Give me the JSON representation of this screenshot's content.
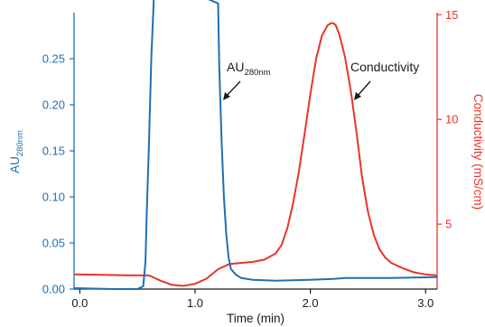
{
  "chart_data": {
    "type": "line",
    "xlabel": "Time (min)",
    "ylabel_left": "AU",
    "ylabel_left_sub": "280nm",
    "ylabel_right": "Conductivity (mS/cm)",
    "xlim": [
      -0.05,
      3.1
    ],
    "ylim_left": [
      0,
      0.3
    ],
    "ylim_right": [
      1.9,
      15.1
    ],
    "x_ticks": [
      "0.0",
      "1.0",
      "2.0",
      "3.0"
    ],
    "y_left_ticks": [
      "0.00",
      "0.05",
      "0.10",
      "0.15",
      "0.20",
      "0.25"
    ],
    "y_right_ticks": [
      "5",
      "10",
      "15"
    ],
    "colors": {
      "uv": "#1f6fb2",
      "conductivity": "#e8342b",
      "text": "#1a1a1a"
    },
    "series": [
      {
        "name": "AU280nm",
        "axis": "left",
        "x": [
          -0.05,
          0.3,
          0.5,
          0.55,
          0.57,
          0.58,
          0.6,
          0.62,
          0.64,
          0.65,
          1.2,
          1.21,
          1.23,
          1.25,
          1.27,
          1.29,
          1.31,
          1.35,
          1.4,
          1.5,
          1.7,
          2.0,
          2.2,
          2.3,
          2.5,
          2.7,
          3.1
        ],
        "y": [
          0.001,
          0.0,
          0.0,
          0.003,
          0.03,
          0.08,
          0.16,
          0.25,
          0.31,
          0.34,
          0.31,
          0.24,
          0.16,
          0.1,
          0.06,
          0.035,
          0.022,
          0.016,
          0.012,
          0.01,
          0.009,
          0.01,
          0.011,
          0.012,
          0.012,
          0.012,
          0.013
        ]
      },
      {
        "name": "Conductivity",
        "axis": "right",
        "x": [
          -0.05,
          0.4,
          0.6,
          0.7,
          0.8,
          0.9,
          1.0,
          1.1,
          1.2,
          1.3,
          1.5,
          1.6,
          1.7,
          1.75,
          1.8,
          1.85,
          1.9,
          1.95,
          2.0,
          2.05,
          2.1,
          2.15,
          2.18,
          2.2,
          2.22,
          2.25,
          2.3,
          2.35,
          2.4,
          2.45,
          2.5,
          2.55,
          2.6,
          2.65,
          2.7,
          2.8,
          2.9,
          3.0,
          3.1
        ],
        "y": [
          2.6,
          2.56,
          2.55,
          2.3,
          2.1,
          2.05,
          2.15,
          2.4,
          2.85,
          3.1,
          3.2,
          3.3,
          3.6,
          4.0,
          4.8,
          6.0,
          7.5,
          9.3,
          11.2,
          12.9,
          14.0,
          14.5,
          14.6,
          14.6,
          14.5,
          14.1,
          13.0,
          11.4,
          9.4,
          7.2,
          5.6,
          4.5,
          3.8,
          3.4,
          3.15,
          2.9,
          2.7,
          2.6,
          2.55
        ]
      }
    ],
    "annotations": [
      {
        "text": "AU",
        "sub": "280nm",
        "target_series": "AU280nm"
      },
      {
        "text": "Conductivity",
        "target_series": "Conductivity"
      }
    ],
    "grid": false,
    "legend": "none"
  }
}
